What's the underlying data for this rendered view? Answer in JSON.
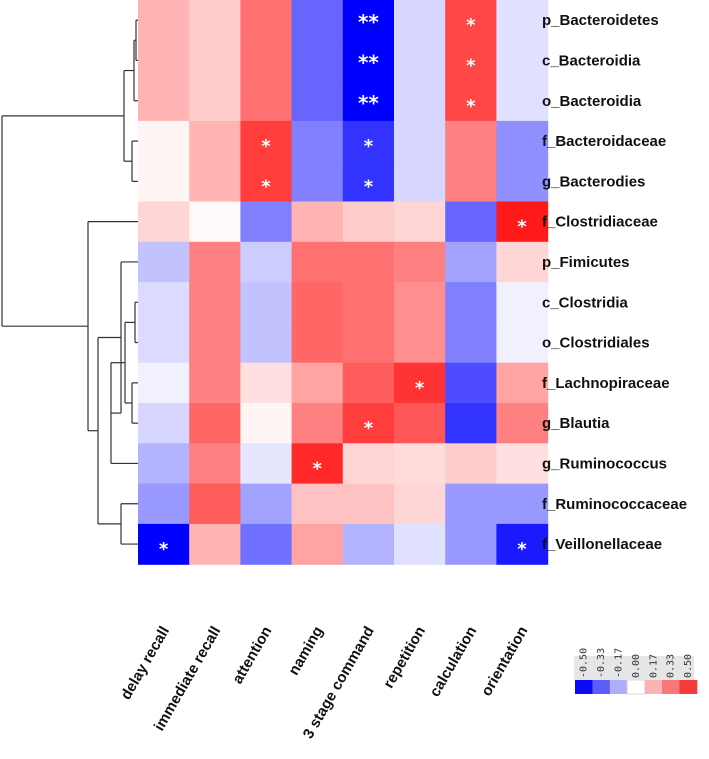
{
  "chart_data": {
    "type": "heatmap",
    "title": "",
    "rows": [
      "p_Bacteroidetes",
      "c_Bacteroidia",
      "o_Bacteroidia",
      "f_Bacteroidaceae",
      "g_Bacterodies",
      "f_Clostridiaceae",
      "p_Fimicutes",
      "c_Clostridia",
      "o_Clostridiales",
      "f_Lachnopiraceae",
      "g_Blautia",
      "g_Ruminococcus",
      "f_Ruminococcaceae",
      "f_Veillonellaceae"
    ],
    "columns": [
      "delay recall",
      "immediate recall",
      "attention",
      "naming",
      "3 stage command",
      "repetition",
      "calculation",
      "orientation"
    ],
    "values": [
      [
        0.15,
        0.1,
        0.28,
        -0.3,
        -0.55,
        -0.08,
        0.36,
        -0.06
      ],
      [
        0.15,
        0.1,
        0.28,
        -0.3,
        -0.55,
        -0.08,
        0.36,
        -0.06
      ],
      [
        0.15,
        0.1,
        0.28,
        -0.3,
        -0.55,
        -0.08,
        0.36,
        -0.06
      ],
      [
        0.02,
        0.15,
        0.38,
        -0.25,
        -0.4,
        -0.08,
        0.25,
        -0.22
      ],
      [
        0.02,
        0.15,
        0.38,
        -0.25,
        -0.4,
        -0.08,
        0.25,
        -0.22
      ],
      [
        0.08,
        0.01,
        -0.25,
        0.15,
        0.1,
        0.08,
        -0.3,
        0.45
      ],
      [
        -0.12,
        0.25,
        -0.1,
        0.28,
        0.28,
        0.25,
        -0.18,
        0.08
      ],
      [
        -0.07,
        0.25,
        -0.12,
        0.3,
        0.28,
        0.22,
        -0.25,
        -0.03
      ],
      [
        -0.07,
        0.25,
        -0.12,
        0.3,
        0.28,
        0.22,
        -0.25,
        -0.03
      ],
      [
        -0.03,
        0.25,
        0.06,
        0.18,
        0.32,
        0.4,
        -0.35,
        0.18
      ],
      [
        -0.08,
        0.3,
        0.02,
        0.25,
        0.38,
        0.33,
        -0.4,
        0.25
      ],
      [
        -0.15,
        0.25,
        -0.05,
        0.42,
        0.08,
        0.07,
        0.1,
        0.06
      ],
      [
        -0.2,
        0.32,
        -0.18,
        0.12,
        0.12,
        0.08,
        -0.2,
        -0.2
      ],
      [
        -0.5,
        0.15,
        -0.28,
        0.18,
        -0.15,
        -0.06,
        -0.2,
        -0.45
      ]
    ],
    "annotations": [
      {
        "row": 0,
        "col": 4,
        "text": "**"
      },
      {
        "row": 0,
        "col": 6,
        "text": "*"
      },
      {
        "row": 1,
        "col": 4,
        "text": "**"
      },
      {
        "row": 1,
        "col": 6,
        "text": "*"
      },
      {
        "row": 2,
        "col": 4,
        "text": "**"
      },
      {
        "row": 2,
        "col": 6,
        "text": "*"
      },
      {
        "row": 3,
        "col": 2,
        "text": "*"
      },
      {
        "row": 3,
        "col": 4,
        "text": "*"
      },
      {
        "row": 4,
        "col": 2,
        "text": "*"
      },
      {
        "row": 4,
        "col": 4,
        "text": "*"
      },
      {
        "row": 5,
        "col": 7,
        "text": "*"
      },
      {
        "row": 9,
        "col": 5,
        "text": "*"
      },
      {
        "row": 10,
        "col": 4,
        "text": "*"
      },
      {
        "row": 11,
        "col": 3,
        "text": "*"
      },
      {
        "row": 13,
        "col": 0,
        "text": "*"
      },
      {
        "row": 13,
        "col": 7,
        "text": "*"
      }
    ],
    "color_scale": {
      "range": [
        -0.5,
        0.5
      ],
      "low_color": "#0000ff",
      "mid_color": "#ffffff",
      "high_color": "#ff0000",
      "legend_ticks": [
        "-0.50",
        "-0.33",
        "-0.17",
        "0.00",
        "0.17",
        "0.33",
        "0.50"
      ],
      "legend_colors": [
        "#0a0af5",
        "#5c5cf8",
        "#aeaefb",
        "#ffffff",
        "#fbb4b4",
        "#f87878",
        "#f53c3c"
      ]
    },
    "dendrogram": "row clustering tree (left side)",
    "legend_position": "bottom-right"
  }
}
